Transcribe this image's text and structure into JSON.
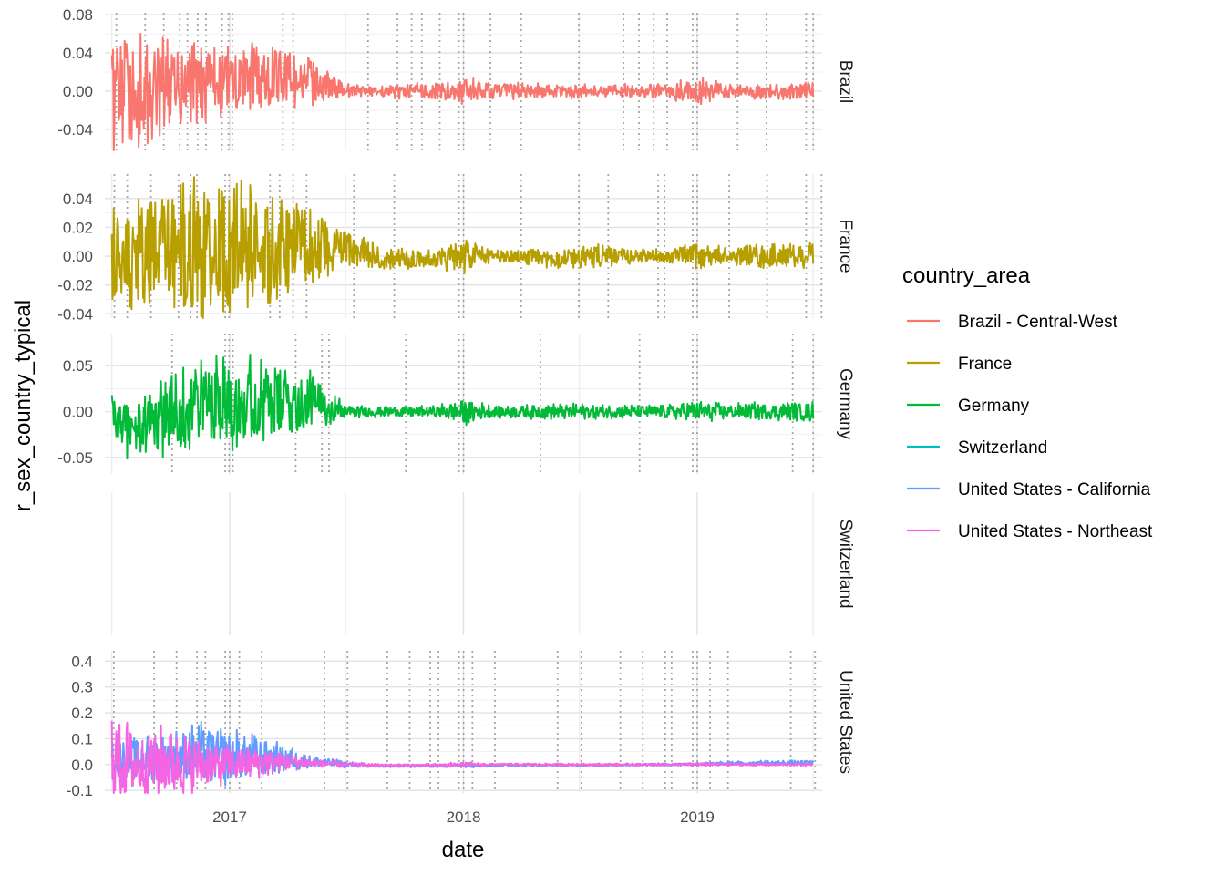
{
  "chart_data": {
    "type": "line",
    "xlabel": "date",
    "ylabel": "r_sex_country_typical",
    "x_tick_labels": [
      "2017",
      "2018",
      "2019"
    ],
    "x_ticks": [
      "2017-01-01",
      "2018-01-01",
      "2019-01-01"
    ],
    "x_range": [
      "2016-06-20",
      "2019-07-15"
    ],
    "x_data_range": [
      "2016-07-01",
      "2019-07-01"
    ],
    "grid": true,
    "legend": {
      "title": "country_area",
      "position": "right",
      "entries": [
        {
          "label": "Brazil - Central-West",
          "color": "#F8766D"
        },
        {
          "label": "France",
          "color": "#B79F00"
        },
        {
          "label": "Germany",
          "color": "#00BA38"
        },
        {
          "label": "Switzerland",
          "color": "#00BFC4"
        },
        {
          "label": "United States - California",
          "color": "#619CFF"
        },
        {
          "label": "United States - Northeast",
          "color": "#F564E3"
        }
      ]
    },
    "panels": [
      {
        "strip": "Brazil",
        "ylim": [
          -0.062,
          0.082
        ],
        "y_ticks": [
          0.08,
          0.04,
          0.0,
          -0.04
        ],
        "y_tick_labels": [
          "0.08",
          "0.04",
          "0.00",
          "-0.04"
        ],
        "vlines": [
          "2016-07-08",
          "2016-08-22",
          "2016-09-20",
          "2016-10-15",
          "2016-10-27",
          "2016-11-12",
          "2016-11-25",
          "2016-12-20",
          "2016-12-30",
          "2017-01-05",
          "2017-03-25",
          "2017-04-10",
          "2017-08-05",
          "2017-09-20",
          "2017-10-12",
          "2017-10-28",
          "2017-11-25",
          "2017-12-25",
          "2018-01-01",
          "2018-02-12",
          "2018-04-01",
          "2018-06-30",
          "2018-09-08",
          "2018-10-02",
          "2018-10-25",
          "2018-11-15",
          "2018-12-25",
          "2019-01-01",
          "2019-03-05",
          "2019-04-19",
          "2019-06-20",
          "2019-07-01"
        ],
        "series": [
          {
            "name": "Brazil - Central-West",
            "color": "#F8766D",
            "x": [
              "2016-07-01",
              "2016-08-15",
              "2016-10-01",
              "2016-11-15",
              "2017-01-01",
              "2017-02-15",
              "2017-04-01",
              "2017-05-15",
              "2017-07-01",
              "2017-08-15",
              "2017-10-01",
              "2017-11-15",
              "2018-01-01",
              "2018-02-15",
              "2018-04-01",
              "2018-05-15",
              "2018-07-01",
              "2018-08-15",
              "2018-10-01",
              "2018-11-15",
              "2019-01-01",
              "2019-02-15",
              "2019-04-01",
              "2019-05-15",
              "2019-07-01"
            ],
            "amplitude": [
              0.055,
              0.05,
              0.045,
              0.035,
              0.03,
              0.03,
              0.028,
              0.02,
              0.006,
              0.005,
              0.007,
              0.008,
              0.012,
              0.008,
              0.007,
              0.007,
              0.006,
              0.006,
              0.007,
              0.007,
              0.012,
              0.007,
              0.007,
              0.007,
              0.008
            ],
            "center": [
              0.0,
              0.0,
              0.0,
              0.005,
              0.01,
              0.015,
              0.015,
              0.01,
              0.0,
              0.0,
              0.0,
              0.0,
              0.0,
              0.0,
              0.0,
              0.0,
              0.0,
              0.0,
              0.0,
              0.0,
              0.0,
              0.0,
              0.0,
              0.0,
              0.0
            ]
          }
        ]
      },
      {
        "strip": "France",
        "ylim": [
          -0.043,
          0.057
        ],
        "y_ticks": [
          0.04,
          0.02,
          0.0,
          -0.02,
          -0.04
        ],
        "y_tick_labels": [
          "0.04",
          "0.02",
          "0.00",
          "-0.02",
          "-0.04"
        ],
        "vlines": [
          "2016-07-05",
          "2016-07-25",
          "2016-08-31",
          "2016-10-13",
          "2016-11-01",
          "2016-11-11",
          "2016-12-25",
          "2016-12-31",
          "2017-03-05",
          "2017-03-20",
          "2017-04-10",
          "2017-05-01",
          "2017-07-14",
          "2017-09-15",
          "2017-12-25",
          "2018-01-01",
          "2018-04-01",
          "2018-06-30",
          "2018-08-15",
          "2018-11-01",
          "2018-11-11",
          "2018-12-25",
          "2019-01-01",
          "2019-02-20",
          "2019-04-20",
          "2019-06-20",
          "2019-07-14"
        ],
        "series": [
          {
            "name": "France",
            "color": "#B79F00",
            "x": [
              "2016-07-01",
              "2016-08-15",
              "2016-10-01",
              "2016-11-15",
              "2017-01-01",
              "2017-02-15",
              "2017-04-01",
              "2017-05-15",
              "2017-07-01",
              "2017-08-15",
              "2017-10-01",
              "2017-11-15",
              "2018-01-01",
              "2018-02-15",
              "2018-04-01",
              "2018-05-15",
              "2018-07-01",
              "2018-08-15",
              "2018-10-01",
              "2018-11-15",
              "2019-01-01",
              "2019-02-15",
              "2019-04-01",
              "2019-05-15",
              "2019-07-01"
            ],
            "amplitude": [
              0.03,
              0.035,
              0.04,
              0.04,
              0.04,
              0.032,
              0.028,
              0.022,
              0.012,
              0.008,
              0.006,
              0.005,
              0.01,
              0.004,
              0.004,
              0.005,
              0.007,
              0.006,
              0.004,
              0.004,
              0.009,
              0.005,
              0.007,
              0.007,
              0.008
            ],
            "center": [
              0.0,
              0.0,
              0.005,
              0.005,
              0.005,
              0.005,
              0.005,
              0.01,
              0.005,
              0.0,
              -0.002,
              -0.002,
              0.0,
              0.0,
              0.0,
              -0.002,
              0.0,
              0.0,
              0.0,
              0.0,
              0.0,
              0.0,
              0.0,
              0.0,
              0.0
            ]
          }
        ]
      },
      {
        "strip": "Germany",
        "ylim": [
          -0.068,
          0.085
        ],
        "y_ticks": [
          0.05,
          0.0,
          -0.05
        ],
        "y_tick_labels": [
          "0.05",
          "0.00",
          "-0.05"
        ],
        "vlines": [
          "2016-10-03",
          "2016-12-25",
          "2016-12-31",
          "2017-01-06",
          "2017-04-14",
          "2017-05-25",
          "2017-06-05",
          "2017-10-03",
          "2017-12-25",
          "2018-01-01",
          "2018-05-01",
          "2018-10-03",
          "2018-12-25",
          "2019-01-01",
          "2019-05-30",
          "2019-07-01"
        ],
        "series": [
          {
            "name": "Germany",
            "color": "#00BA38",
            "x": [
              "2016-07-01",
              "2016-08-15",
              "2016-10-01",
              "2016-11-15",
              "2017-01-01",
              "2017-02-15",
              "2017-04-01",
              "2017-05-15",
              "2017-07-01",
              "2017-08-15",
              "2017-10-01",
              "2017-11-15",
              "2018-01-01",
              "2018-02-15",
              "2018-04-01",
              "2018-05-15",
              "2018-07-01",
              "2018-08-15",
              "2018-10-01",
              "2018-11-15",
              "2019-01-01",
              "2019-02-15",
              "2019-04-01",
              "2019-05-15",
              "2019-07-01"
            ],
            "amplitude": [
              0.025,
              0.03,
              0.04,
              0.04,
              0.045,
              0.04,
              0.035,
              0.025,
              0.006,
              0.005,
              0.005,
              0.005,
              0.012,
              0.006,
              0.006,
              0.007,
              0.007,
              0.006,
              0.006,
              0.006,
              0.01,
              0.007,
              0.008,
              0.008,
              0.009
            ],
            "center": [
              -0.01,
              -0.02,
              0.0,
              0.01,
              0.015,
              0.01,
              0.01,
              0.01,
              0.0,
              0.0,
              0.0,
              0.0,
              0.0,
              0.0,
              0.0,
              0.0,
              0.0,
              0.0,
              0.0,
              0.0,
              0.0,
              0.0,
              0.0,
              0.0,
              0.0
            ]
          }
        ]
      },
      {
        "strip": "Switzerland",
        "ylim": [
          -1,
          1
        ],
        "y_ticks": [],
        "y_tick_labels": [],
        "vlines": [],
        "series": []
      },
      {
        "strip": "United States",
        "ylim": [
          -0.11,
          0.44
        ],
        "y_ticks": [
          0.4,
          0.3,
          0.2,
          0.1,
          0.0,
          -0.1
        ],
        "y_tick_labels": [
          "0.4",
          "0.3",
          "0.2",
          "0.1",
          "0.0",
          "-0.1"
        ],
        "vlines": [
          "2016-07-04",
          "2016-09-05",
          "2016-10-10",
          "2016-11-11",
          "2016-11-24",
          "2016-12-25",
          "2017-01-01",
          "2017-01-16",
          "2017-02-20",
          "2017-05-29",
          "2017-07-04",
          "2017-09-04",
          "2017-10-09",
          "2017-11-10",
          "2017-11-23",
          "2017-12-25",
          "2018-01-01",
          "2018-01-15",
          "2018-02-19",
          "2018-05-28",
          "2018-07-04",
          "2018-09-03",
          "2018-10-08",
          "2018-11-12",
          "2018-11-22",
          "2018-12-25",
          "2019-01-01",
          "2019-01-21",
          "2019-02-18",
          "2019-05-27",
          "2019-07-04"
        ],
        "series": [
          {
            "name": "United States - California",
            "color": "#619CFF",
            "x": [
              "2016-07-01",
              "2016-08-15",
              "2016-10-01",
              "2016-11-15",
              "2017-01-01",
              "2017-02-15",
              "2017-04-01",
              "2017-05-15",
              "2017-07-01",
              "2017-08-15",
              "2017-10-01",
              "2017-11-15",
              "2018-01-01",
              "2018-02-15",
              "2018-04-01",
              "2018-05-15",
              "2018-07-01",
              "2018-08-15",
              "2018-10-01",
              "2018-11-15",
              "2019-01-01",
              "2019-02-15",
              "2019-04-01",
              "2019-05-15",
              "2019-07-01"
            ],
            "amplitude": [
              0.08,
              0.07,
              0.08,
              0.1,
              0.09,
              0.07,
              0.04,
              0.02,
              0.01,
              0.006,
              0.005,
              0.005,
              0.008,
              0.005,
              0.004,
              0.004,
              0.004,
              0.004,
              0.004,
              0.004,
              0.006,
              0.006,
              0.007,
              0.008,
              0.009
            ],
            "center": [
              0.03,
              0.02,
              0.03,
              0.04,
              0.03,
              0.03,
              0.02,
              0.01,
              0.0,
              -0.005,
              -0.005,
              -0.005,
              -0.003,
              -0.003,
              -0.003,
              -0.003,
              -0.002,
              -0.002,
              0.0,
              0.0,
              0.002,
              0.004,
              0.006,
              0.006,
              0.006
            ]
          },
          {
            "name": "United States - Northeast",
            "color": "#F564E3",
            "x": [
              "2016-07-01",
              "2016-08-15",
              "2016-10-01",
              "2016-11-15",
              "2017-01-01",
              "2017-02-15",
              "2017-04-01",
              "2017-05-15",
              "2017-07-01",
              "2017-08-15",
              "2017-10-01",
              "2017-11-15",
              "2018-01-01",
              "2018-02-15",
              "2018-04-01",
              "2018-05-15",
              "2018-07-01",
              "2018-08-15",
              "2018-10-01",
              "2018-11-15",
              "2019-01-01",
              "2019-02-15",
              "2019-04-01",
              "2019-05-15",
              "2019-07-01"
            ],
            "amplitude": [
              0.16,
              0.11,
              0.12,
              0.08,
              0.06,
              0.05,
              0.03,
              0.015,
              0.008,
              0.006,
              0.005,
              0.005,
              0.008,
              0.004,
              0.004,
              0.004,
              0.004,
              0.004,
              0.004,
              0.004,
              0.006,
              0.004,
              0.004,
              0.004,
              0.005
            ],
            "center": [
              0.02,
              0.0,
              0.01,
              0.0,
              0.0,
              0.01,
              0.01,
              0.005,
              0.0,
              -0.003,
              -0.003,
              -0.003,
              0.0,
              0.0,
              0.0,
              0.0,
              0.0,
              0.0,
              0.0,
              0.0,
              0.0,
              0.0,
              0.0,
              0.0,
              0.0
            ]
          }
        ]
      }
    ]
  }
}
